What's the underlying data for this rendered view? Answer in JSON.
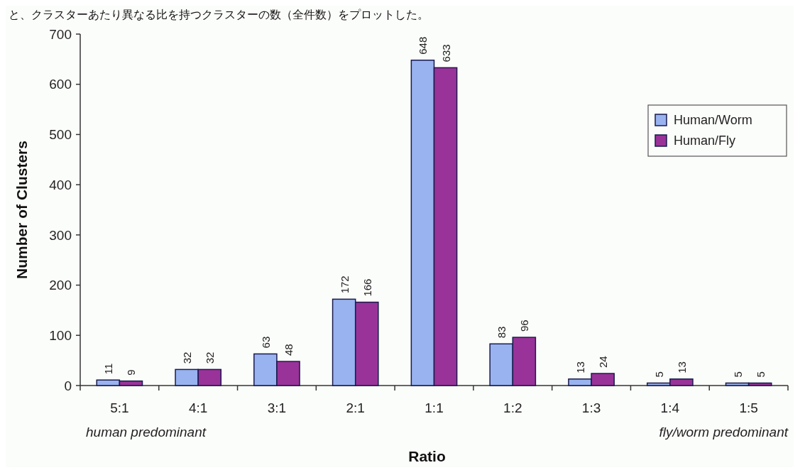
{
  "chart_data": {
    "type": "bar",
    "title": "と、クラスターあたり異なる比を持つクラスターの数（全件数）をプロットした。",
    "xlabel": "Ratio",
    "ylabel": "Number of Clusters",
    "categories": [
      "5:1",
      "4:1",
      "3:1",
      "2:1",
      "1:1",
      "1:2",
      "1:3",
      "1:4",
      "1:5"
    ],
    "series": [
      {
        "name": "Human/Worm",
        "color": "#99b3f0",
        "values": [
          11,
          32,
          63,
          172,
          648,
          83,
          13,
          5,
          5
        ]
      },
      {
        "name": "Human/Fly",
        "color": "#993399",
        "values": [
          9,
          32,
          48,
          166,
          633,
          96,
          24,
          13,
          5
        ]
      }
    ],
    "ylim": [
      0,
      700
    ],
    "yticks": [
      0,
      100,
      200,
      300,
      400,
      500,
      600,
      700
    ],
    "data_labels": true,
    "legend": "top right",
    "grid": false,
    "annotations": [
      "human predominant",
      "fly/worm predominant"
    ]
  }
}
